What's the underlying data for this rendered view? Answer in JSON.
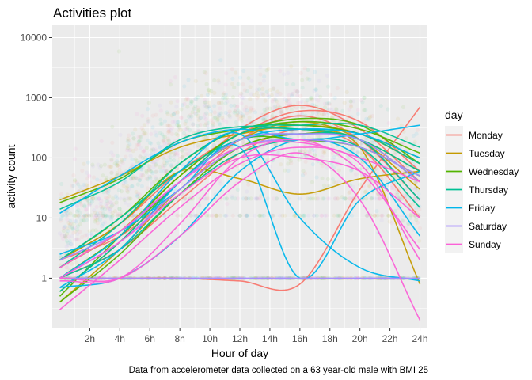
{
  "chart_data": {
    "type": "scatter",
    "title": "Activities plot",
    "xlabel": "Hour of day",
    "ylabel": "activity count",
    "caption": "Data from accelerometer data collected on a 63 year-old male with BMI 25",
    "x_scale": "linear",
    "y_scale": "log10",
    "xlim": [
      -0.5,
      24.5
    ],
    "ylim": [
      0.15,
      16000
    ],
    "x_ticks": [
      2,
      4,
      6,
      8,
      10,
      12,
      14,
      16,
      18,
      20,
      22,
      24
    ],
    "x_tick_labels": [
      "2h",
      "4h",
      "6h",
      "8h",
      "10h",
      "12h",
      "14h",
      "16h",
      "18h",
      "20h",
      "22h",
      "24h"
    ],
    "y_ticks": [
      1,
      10,
      100,
      1000,
      10000
    ],
    "y_tick_labels": [
      "1",
      "10",
      "100",
      "1000",
      "10000"
    ],
    "grid": true,
    "panel_background": "#ebebeb",
    "legend": {
      "title": "day",
      "position": "right",
      "entries": [
        "Monday",
        "Tuesday",
        "Wednesday",
        "Thursday",
        "Friday",
        "Saturday",
        "Sunday"
      ]
    },
    "colors": {
      "Monday": "#F8766D",
      "Tuesday": "#C49A00",
      "Wednesday": "#53B400",
      "Thursday": "#00C094",
      "Friday": "#00B6EB",
      "Saturday": "#A58AFF",
      "Sunday": "#FB61D7"
    },
    "points_note": "dense transparent raw minute-level points per day; horizontal bands at 1, 11 and 21 counts",
    "series": [
      {
        "day": "Monday",
        "x": [
          0,
          4,
          8,
          12,
          16,
          20,
          24
        ],
        "y": [
          1,
          1,
          1,
          0.9,
          0.8,
          30,
          700
        ]
      },
      {
        "day": "Monday",
        "x": [
          0,
          4,
          8,
          12,
          16,
          20,
          24
        ],
        "y": [
          2,
          8,
          60,
          250,
          600,
          400,
          60
        ]
      },
      {
        "day": "Monday",
        "x": [
          0,
          4,
          8,
          12,
          16,
          20,
          24
        ],
        "y": [
          1.5,
          6,
          40,
          300,
          750,
          300,
          40
        ]
      },
      {
        "day": "Monday",
        "x": [
          0,
          4,
          8,
          12,
          16,
          20,
          24
        ],
        "y": [
          2,
          5,
          30,
          200,
          500,
          200,
          20
        ]
      },
      {
        "day": "Monday",
        "x": [
          0,
          4,
          8,
          12,
          16,
          20,
          24
        ],
        "y": [
          1,
          3,
          20,
          120,
          300,
          150,
          10
        ]
      },
      {
        "day": "Tuesday",
        "x": [
          0,
          4,
          8,
          12,
          16,
          20,
          24
        ],
        "y": [
          20,
          50,
          150,
          250,
          350,
          250,
          80
        ]
      },
      {
        "day": "Tuesday",
        "x": [
          0,
          4,
          8,
          12,
          16,
          20,
          24
        ],
        "y": [
          1.5,
          6,
          50,
          250,
          300,
          200,
          60
        ]
      },
      {
        "day": "Tuesday",
        "x": [
          0,
          4,
          8,
          12,
          16,
          20,
          24
        ],
        "y": [
          0.6,
          4,
          40,
          200,
          400,
          200,
          30
        ]
      },
      {
        "day": "Tuesday",
        "x": [
          0,
          4,
          8,
          12,
          16,
          20,
          24
        ],
        "y": [
          0.4,
          3,
          30,
          150,
          250,
          150,
          0.8
        ]
      },
      {
        "day": "Tuesday",
        "x": [
          0,
          4,
          8,
          12,
          16,
          20,
          24
        ],
        "y": [
          2,
          8,
          60,
          45,
          25,
          45,
          60
        ]
      },
      {
        "day": "Wednesday",
        "x": [
          0,
          4,
          8,
          12,
          16,
          20,
          24
        ],
        "y": [
          18,
          45,
          180,
          300,
          450,
          350,
          80
        ]
      },
      {
        "day": "Wednesday",
        "x": [
          0,
          4,
          8,
          12,
          16,
          20,
          24
        ],
        "y": [
          2,
          10,
          80,
          300,
          350,
          250,
          100
        ]
      },
      {
        "day": "Wednesday",
        "x": [
          0,
          4,
          8,
          12,
          16,
          20,
          24
        ],
        "y": [
          0.5,
          5,
          50,
          250,
          400,
          300,
          120
        ]
      },
      {
        "day": "Wednesday",
        "x": [
          0,
          4,
          8,
          12,
          16,
          20,
          24
        ],
        "y": [
          1,
          5,
          40,
          200,
          200,
          150,
          50
        ]
      },
      {
        "day": "Wednesday",
        "x": [
          0,
          4,
          8,
          12,
          16,
          20,
          24
        ],
        "y": [
          0.4,
          2.5,
          25,
          150,
          250,
          200,
          40
        ]
      },
      {
        "day": "Thursday",
        "x": [
          0,
          4,
          8,
          12,
          16,
          20,
          24
        ],
        "y": [
          14,
          40,
          200,
          330,
          300,
          250,
          80
        ]
      },
      {
        "day": "Thursday",
        "x": [
          0,
          4,
          8,
          12,
          16,
          20,
          24
        ],
        "y": [
          1.5,
          8,
          80,
          300,
          350,
          350,
          150
        ]
      },
      {
        "day": "Thursday",
        "x": [
          0,
          4,
          8,
          12,
          16,
          20,
          24
        ],
        "y": [
          0.6,
          4,
          40,
          250,
          300,
          200,
          60
        ]
      },
      {
        "day": "Thursday",
        "x": [
          0,
          4,
          8,
          12,
          16,
          20,
          24
        ],
        "y": [
          2,
          10,
          60,
          200,
          250,
          200,
          20
        ]
      },
      {
        "day": "Thursday",
        "x": [
          0,
          4,
          8,
          12,
          16,
          20,
          24
        ],
        "y": [
          1,
          3,
          25,
          120,
          200,
          150,
          15
        ]
      },
      {
        "day": "Friday",
        "x": [
          0,
          4,
          8,
          12,
          16,
          20,
          24
        ],
        "y": [
          12,
          50,
          180,
          300,
          200,
          250,
          350
        ]
      },
      {
        "day": "Friday",
        "x": [
          0,
          4,
          8,
          12,
          16,
          20,
          24
        ],
        "y": [
          1,
          5,
          60,
          250,
          10,
          1.5,
          0.9
        ]
      },
      {
        "day": "Friday",
        "x": [
          0,
          4,
          8,
          12,
          16,
          20,
          24
        ],
        "y": [
          0.7,
          3,
          40,
          200,
          300,
          250,
          100
        ]
      },
      {
        "day": "Friday",
        "x": [
          0,
          4,
          8,
          12,
          16,
          20,
          24
        ],
        "y": [
          2.5,
          6,
          30,
          150,
          1,
          20,
          60
        ]
      },
      {
        "day": "Friday",
        "x": [
          0,
          4,
          8,
          12,
          16,
          20,
          24
        ],
        "y": [
          0.7,
          1,
          5,
          60,
          200,
          100,
          5
        ]
      },
      {
        "day": "Saturday",
        "x": [
          0,
          4,
          8,
          12,
          16,
          20,
          24
        ],
        "y": [
          1,
          1,
          1,
          1,
          1,
          1,
          1
        ]
      },
      {
        "day": "Saturday",
        "x": [
          0,
          4,
          8,
          12,
          16,
          20,
          24
        ],
        "y": [
          2,
          6,
          40,
          200,
          250,
          200,
          40
        ]
      },
      {
        "day": "Saturday",
        "x": [
          0,
          4,
          8,
          12,
          16,
          20,
          24
        ],
        "y": [
          1,
          4,
          30,
          150,
          200,
          150,
          50
        ]
      },
      {
        "day": "Sunday",
        "x": [
          0,
          4,
          8,
          12,
          16,
          20,
          24
        ],
        "y": [
          1,
          1,
          5,
          40,
          120,
          20,
          0.2
        ]
      },
      {
        "day": "Sunday",
        "x": [
          0,
          4,
          8,
          12,
          16,
          20,
          24
        ],
        "y": [
          0.9,
          1,
          8,
          100,
          200,
          60,
          3
        ]
      },
      {
        "day": "Sunday",
        "x": [
          0,
          4,
          8,
          12,
          16,
          20,
          24
        ],
        "y": [
          1,
          4,
          25,
          100,
          100,
          60,
          10
        ]
      },
      {
        "day": "Sunday",
        "x": [
          0,
          4,
          8,
          12,
          16,
          20,
          24
        ],
        "y": [
          0.3,
          2,
          15,
          80,
          150,
          80,
          2
        ]
      },
      {
        "day": "Sunday",
        "x": [
          0,
          4,
          8,
          12,
          16,
          20,
          24
        ],
        "y": [
          1.5,
          6,
          40,
          150,
          180,
          100,
          40
        ]
      }
    ]
  }
}
